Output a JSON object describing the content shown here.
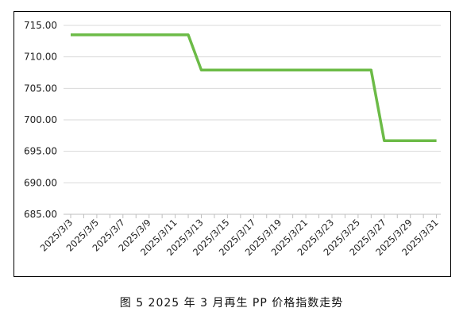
{
  "chart_data": {
    "type": "line",
    "title": "",
    "xlabel": "",
    "ylabel": "",
    "ylim": [
      685,
      715
    ],
    "yticks": [
      "715.00",
      "710.00",
      "705.00",
      "700.00",
      "695.00",
      "690.00",
      "685.00"
    ],
    "yticks_values": [
      715,
      710,
      705,
      700,
      695,
      690,
      685
    ],
    "xtick_labels": [
      "2025/3/3",
      "2025/3/5",
      "2025/3/7",
      "2025/3/9",
      "2025/3/11",
      "2025/3/13",
      "2025/3/15",
      "2025/3/17",
      "2025/3/19",
      "2025/3/21",
      "2025/3/23",
      "2025/3/25",
      "2025/3/27",
      "2025/3/29",
      "2025/3/31"
    ],
    "grid": "horizontal",
    "line_color": "#6cbb47",
    "series": [
      {
        "x": [
          "2025/3/3",
          "2025/3/12",
          "2025/3/13",
          "2025/3/26",
          "2025/3/27",
          "2025/3/31"
        ],
        "values": [
          713.5,
          713.5,
          707.9,
          707.9,
          696.7,
          696.7
        ]
      }
    ]
  },
  "caption": "图 5  2025 年 3 月再生 PP 价格指数走势"
}
